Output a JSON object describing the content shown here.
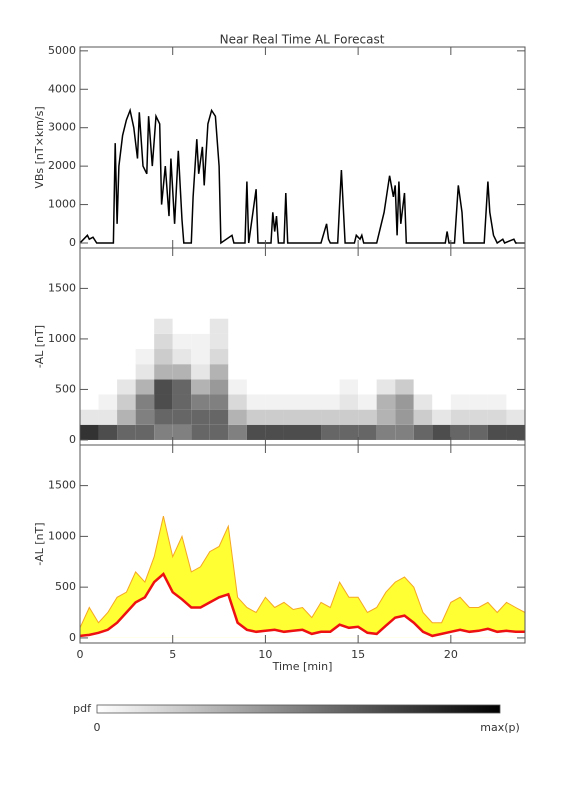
{
  "chart_data": [
    {
      "type": "line",
      "title": "Near Real Time AL Forecast",
      "ylabel": "VBs [nT×km/s]",
      "color": "#000000",
      "xlim": [
        0,
        24
      ],
      "xticks": [
        0,
        5,
        10,
        15,
        20
      ],
      "ylim": [
        -130,
        5100
      ],
      "yticks": [
        0,
        1000,
        2000,
        3000,
        4000,
        5000
      ],
      "x": [
        0,
        0.4,
        0.5,
        0.7,
        0.9,
        1.8,
        1.9,
        2.0,
        2.1,
        2.3,
        2.5,
        2.7,
        2.9,
        3.1,
        3.2,
        3.4,
        3.6,
        3.7,
        3.9,
        4.1,
        4.3,
        4.4,
        4.6,
        4.8,
        4.9,
        5.1,
        5.3,
        5.5,
        5.6,
        6.0,
        6.1,
        6.3,
        6.4,
        6.6,
        6.7,
        6.9,
        7.1,
        7.3,
        7.5,
        7.6,
        8.2,
        8.3,
        8.9,
        9.0,
        9.1,
        9.5,
        9.6,
        10.3,
        10.4,
        10.5,
        10.6,
        10.7,
        11.0,
        11.1,
        11.2,
        13.0,
        13.3,
        13.4,
        13.5,
        13.9,
        14.0,
        14.1,
        14.3,
        14.8,
        14.9,
        15.1,
        15.2,
        15.3,
        16.0,
        16.4,
        16.7,
        16.9,
        17.0,
        17.1,
        17.2,
        17.3,
        17.5,
        17.6,
        19.7,
        19.8,
        19.9,
        20.2,
        20.4,
        20.6,
        20.7,
        21.8,
        22.0,
        22.1,
        22.3,
        22.5,
        22.8,
        22.9,
        23.4,
        23.5,
        24
      ],
      "values": [
        0,
        200,
        100,
        150,
        0,
        0,
        2600,
        500,
        2000,
        2800,
        3200,
        3450,
        3000,
        2200,
        3400,
        2000,
        1800,
        3300,
        2000,
        3300,
        3100,
        1000,
        2000,
        700,
        2200,
        500,
        2400,
        600,
        0,
        0,
        1200,
        2700,
        1800,
        2500,
        1500,
        3100,
        3450,
        3300,
        2000,
        0,
        200,
        0,
        0,
        1600,
        0,
        1400,
        0,
        0,
        800,
        300,
        700,
        0,
        0,
        1300,
        0,
        0,
        500,
        100,
        0,
        0,
        1000,
        1900,
        0,
        0,
        200,
        100,
        200,
        0,
        0,
        800,
        1750,
        1200,
        1500,
        200,
        1600,
        500,
        1300,
        0,
        0,
        300,
        0,
        0,
        1500,
        800,
        0,
        0,
        1600,
        800,
        200,
        0,
        100,
        0,
        100,
        0,
        0
      ]
    },
    {
      "type": "heatmap",
      "ylabel": "-AL [nT]",
      "xlim": [
        0,
        24
      ],
      "xticks": [
        0,
        5,
        10,
        15,
        20
      ],
      "ylim": [
        -50,
        1900
      ],
      "yticks": [
        0,
        500,
        1000,
        1500
      ],
      "x_bins": [
        0,
        1,
        2,
        3,
        4,
        5,
        6,
        7,
        8,
        9,
        10,
        11,
        12,
        13,
        14,
        15,
        16,
        17,
        18,
        19,
        20,
        21,
        22,
        23,
        24
      ],
      "y_bins": [
        0,
        150,
        300,
        450,
        600,
        750,
        900,
        1050,
        1200
      ],
      "z": [
        [
          0.8,
          0.7,
          0.6,
          0.6,
          0.5,
          0.5,
          0.6,
          0.6,
          0.5,
          0.7,
          0.7,
          0.7,
          0.7,
          0.6,
          0.6,
          0.6,
          0.5,
          0.5,
          0.6,
          0.7,
          0.6,
          0.6,
          0.7,
          0.7
        ],
        [
          0.1,
          0.1,
          0.3,
          0.5,
          0.6,
          0.6,
          0.6,
          0.6,
          0.3,
          0.2,
          0.2,
          0.2,
          0.2,
          0.2,
          0.2,
          0.2,
          0.3,
          0.4,
          0.2,
          0.1,
          0.15,
          0.15,
          0.15,
          0.1
        ],
        [
          0,
          0.05,
          0.2,
          0.5,
          0.7,
          0.6,
          0.5,
          0.5,
          0.15,
          0.05,
          0.05,
          0.05,
          0.05,
          0.05,
          0.1,
          0.05,
          0.3,
          0.4,
          0.1,
          0,
          0.05,
          0.05,
          0.05,
          0
        ],
        [
          0,
          0,
          0.1,
          0.3,
          0.7,
          0.6,
          0.3,
          0.4,
          0.05,
          0,
          0,
          0,
          0,
          0,
          0.05,
          0,
          0.1,
          0.2,
          0,
          0,
          0,
          0,
          0,
          0
        ],
        [
          0,
          0,
          0,
          0.1,
          0.3,
          0.3,
          0.1,
          0.3,
          0,
          0,
          0,
          0,
          0,
          0,
          0,
          0,
          0,
          0,
          0,
          0,
          0,
          0,
          0,
          0
        ],
        [
          0,
          0,
          0,
          0.05,
          0.2,
          0.1,
          0.05,
          0.15,
          0,
          0,
          0,
          0,
          0,
          0,
          0,
          0,
          0,
          0,
          0,
          0,
          0,
          0,
          0,
          0
        ],
        [
          0,
          0,
          0,
          0,
          0.15,
          0.05,
          0.05,
          0.1,
          0,
          0,
          0,
          0,
          0,
          0,
          0,
          0,
          0,
          0,
          0,
          0,
          0,
          0,
          0,
          0
        ],
        [
          0,
          0,
          0,
          0,
          0.1,
          0,
          0,
          0.1,
          0,
          0,
          0,
          0,
          0,
          0,
          0,
          0,
          0,
          0,
          0,
          0,
          0,
          0,
          0,
          0
        ]
      ],
      "cmap": [
        "#ffffff",
        "#000000"
      ],
      "colorbar": {
        "label": "pdf",
        "min_label": "0",
        "max_label": "max(p)"
      }
    },
    {
      "type": "band",
      "ylabel": "-AL [nT]",
      "xlabel": "Time [min]",
      "xlim": [
        0,
        24
      ],
      "xticks": [
        0,
        5,
        10,
        15,
        20
      ],
      "ylim": [
        -50,
        1900
      ],
      "yticks": [
        0,
        500,
        1000,
        1500
      ],
      "x": [
        0,
        0.5,
        1,
        1.5,
        2,
        2.5,
        3,
        3.5,
        4,
        4.5,
        5,
        5.5,
        6,
        6.5,
        7,
        7.5,
        8,
        8.5,
        9,
        9.5,
        10,
        10.5,
        11,
        11.5,
        12,
        12.5,
        13,
        13.5,
        14,
        14.5,
        15,
        15.5,
        16,
        16.5,
        17,
        17.5,
        18,
        18.5,
        19,
        19.5,
        20,
        20.5,
        21,
        21.5,
        22,
        22.5,
        23,
        23.5,
        24
      ],
      "series": [
        {
          "color": "#ee1111",
          "values": [
            20,
            30,
            50,
            80,
            150,
            250,
            350,
            400,
            550,
            630,
            450,
            380,
            300,
            300,
            350,
            400,
            430,
            150,
            80,
            60,
            70,
            80,
            60,
            70,
            80,
            40,
            60,
            60,
            130,
            100,
            110,
            50,
            40,
            120,
            200,
            220,
            150,
            60,
            20,
            40,
            60,
            80,
            60,
            70,
            90,
            60,
            70,
            60,
            60
          ]
        },
        {
          "color": "#f5a623",
          "fill": "#ffff33",
          "values": [
            100,
            300,
            150,
            250,
            400,
            450,
            650,
            550,
            800,
            1200,
            800,
            1000,
            650,
            700,
            850,
            900,
            1100,
            400,
            300,
            250,
            400,
            300,
            350,
            280,
            300,
            200,
            350,
            300,
            550,
            400,
            400,
            250,
            300,
            450,
            550,
            600,
            500,
            250,
            150,
            150,
            350,
            400,
            300,
            300,
            350,
            250,
            350,
            300,
            250
          ]
        }
      ]
    }
  ]
}
